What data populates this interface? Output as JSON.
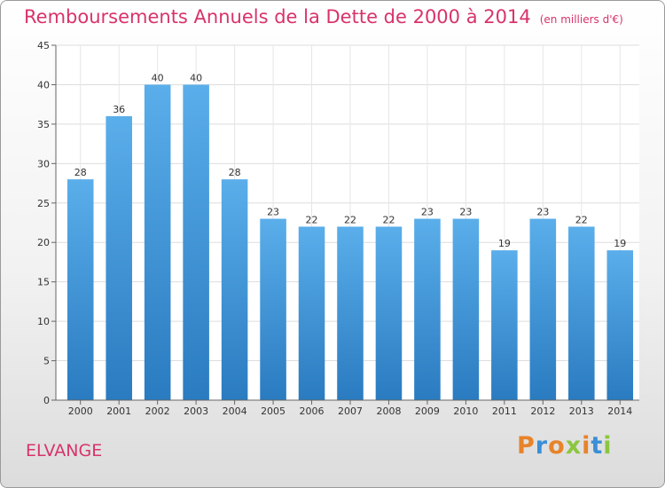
{
  "header": {
    "title": "Remboursements Annuels de la Dette de 2000 à 2014",
    "unit": "(en milliers d'€)"
  },
  "footer": {
    "city": "ELVANGE",
    "logo_text": "Proxiti",
    "logo_colors": [
      "#e8832a",
      "#3a8fd6",
      "#e8832a",
      "#8cc63f",
      "#e8832a",
      "#3a8fd6",
      "#8cc63f"
    ]
  },
  "colors": {
    "title": "#d8336a",
    "bar_top": "#5aaeea",
    "bar_bottom": "#2a7bc0"
  },
  "chart_data": {
    "type": "bar",
    "title": "Remboursements Annuels de la Dette de 2000 à 2014",
    "categories": [
      "2000",
      "2001",
      "2002",
      "2003",
      "2004",
      "2005",
      "2006",
      "2007",
      "2008",
      "2009",
      "2010",
      "2011",
      "2012",
      "2013",
      "2014"
    ],
    "values": [
      28,
      36,
      40,
      40,
      28,
      23,
      22,
      22,
      22,
      23,
      23,
      19,
      23,
      22,
      19
    ],
    "ylim": [
      0,
      45
    ],
    "yticks": [
      0,
      5,
      10,
      15,
      20,
      25,
      30,
      35,
      40,
      45
    ],
    "grid": true
  }
}
